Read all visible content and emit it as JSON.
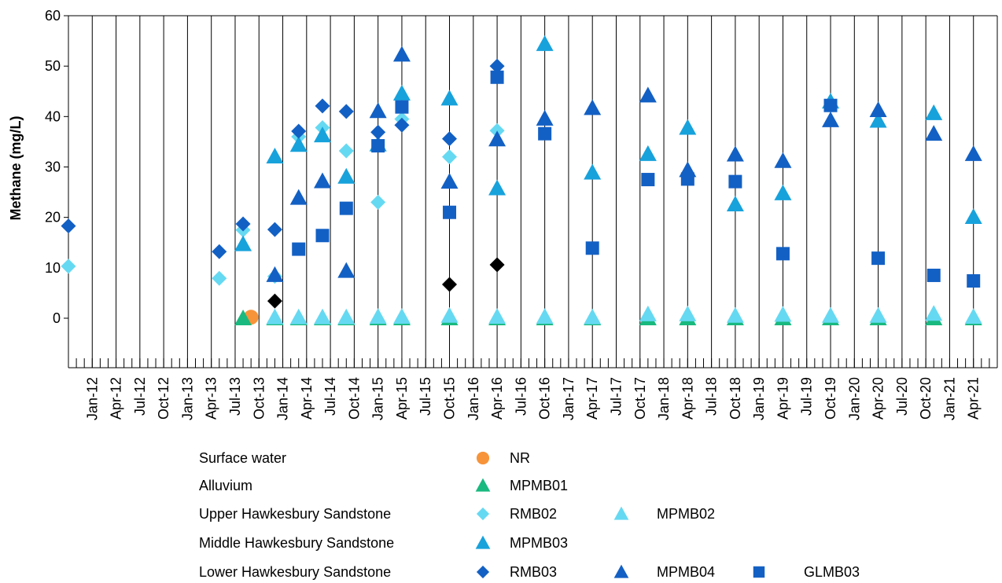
{
  "chart_data": {
    "type": "scatter",
    "ylabel": "Methane (mg/L)",
    "ylim": [
      0,
      60
    ],
    "yticks": [
      0,
      10,
      20,
      30,
      40,
      50,
      60
    ],
    "x_axis_unit": "quarter",
    "xlim": [
      "2011-10",
      "2021-07"
    ],
    "xticks": [
      "Jan-12",
      "Apr-12",
      "Jul-12",
      "Oct-12",
      "Jan-13",
      "Apr-13",
      "Jul-13",
      "Oct-13",
      "Jan-14",
      "Apr-14",
      "Jul-14",
      "Oct-14",
      "Jan-15",
      "Apr-15",
      "Jul-15",
      "Oct-15",
      "Jan-16",
      "Apr-16",
      "Jul-16",
      "Oct-16",
      "Jan-17",
      "Apr-17",
      "Jul-17",
      "Oct-17",
      "Jan-18",
      "Apr-18",
      "Jul-18",
      "Oct-18",
      "Jan-19",
      "Apr-19",
      "Jul-19",
      "Oct-19",
      "Jan-20",
      "Apr-20",
      "Jul-20",
      "Oct-20",
      "Jan-21",
      "Apr-21"
    ],
    "grid": "vertical",
    "legend_position": "bottom",
    "legend_groups": [
      {
        "label": "Surface water",
        "series": [
          "NR"
        ]
      },
      {
        "label": "Alluvium",
        "series": [
          "MPMB01"
        ]
      },
      {
        "label": "Upper Hawkesbury Sandstone",
        "series": [
          "RMB02",
          "MPMB02"
        ]
      },
      {
        "label": "Middle Hawkesbury Sandstone",
        "series": [
          "MPMB03"
        ]
      },
      {
        "label": "Lower Hawkesbury Sandstone",
        "series": [
          "RMB03",
          "MPMB04",
          "GLMB03"
        ]
      }
    ],
    "series": [
      {
        "name": "NR",
        "marker": "circle",
        "color": "#f7943a",
        "points": [
          [
            "2013-09",
            0.2
          ]
        ]
      },
      {
        "name": "MPMB01",
        "marker": "triangle",
        "color": "#19b97f",
        "points": [
          [
            "2013-08",
            0
          ],
          [
            "2013-12",
            0
          ],
          [
            "2014-03",
            0
          ],
          [
            "2014-06",
            0
          ],
          [
            "2014-09",
            0
          ],
          [
            "2015-01",
            0
          ],
          [
            "2015-04",
            0
          ],
          [
            "2015-10",
            0
          ],
          [
            "2016-04",
            0
          ],
          [
            "2016-10",
            0
          ],
          [
            "2017-04",
            0
          ],
          [
            "2017-11",
            0
          ],
          [
            "2018-04",
            0
          ],
          [
            "2018-10",
            0
          ],
          [
            "2019-04",
            0
          ],
          [
            "2019-10",
            0
          ],
          [
            "2020-04",
            0
          ],
          [
            "2020-11",
            0
          ],
          [
            "2021-04",
            0
          ]
        ]
      },
      {
        "name": "RMB02",
        "marker": "diamond",
        "color": "#66d9f2",
        "points": [
          [
            "2011-10",
            10.3
          ],
          [
            "2013-05",
            7.9
          ],
          [
            "2013-08",
            17.5
          ],
          [
            "2013-12",
            8.3
          ],
          [
            "2014-03",
            36.0
          ],
          [
            "2014-06",
            37.8
          ],
          [
            "2014-09",
            33.2
          ],
          [
            "2015-01",
            23.0
          ],
          [
            "2015-04",
            39.5
          ],
          [
            "2015-10",
            32.0
          ],
          [
            "2016-04",
            37.2
          ]
        ]
      },
      {
        "name": "MPMB02",
        "marker": "triangle",
        "color": "#66d9f2",
        "points": [
          [
            "2013-12",
            0.2
          ],
          [
            "2014-03",
            0.2
          ],
          [
            "2014-06",
            0.2
          ],
          [
            "2014-09",
            0.2
          ],
          [
            "2015-01",
            0.3
          ],
          [
            "2015-04",
            0.3
          ],
          [
            "2015-10",
            0.5
          ],
          [
            "2016-04",
            0.3
          ],
          [
            "2016-10",
            0.3
          ],
          [
            "2017-04",
            0.2
          ],
          [
            "2017-11",
            0.8
          ],
          [
            "2018-04",
            0.8
          ],
          [
            "2018-10",
            0.5
          ],
          [
            "2019-04",
            0.7
          ],
          [
            "2019-10",
            0.5
          ],
          [
            "2020-04",
            0.5
          ],
          [
            "2020-11",
            0.9
          ],
          [
            "2021-04",
            0.3
          ]
        ]
      },
      {
        "name": "MPMB03",
        "marker": "triangle",
        "color": "#17a2dc",
        "points": [
          [
            "2013-08",
            14.7
          ],
          [
            "2013-12",
            32.1
          ],
          [
            "2014-03",
            34.4
          ],
          [
            "2014-06",
            36.3
          ],
          [
            "2014-09",
            28.1
          ],
          [
            "2015-01",
            34.5
          ],
          [
            "2015-04",
            44.6
          ],
          [
            "2015-10",
            43.6
          ],
          [
            "2016-04",
            25.8
          ],
          [
            "2016-10",
            54.4
          ],
          [
            "2017-04",
            28.9
          ],
          [
            "2017-11",
            32.6
          ],
          [
            "2018-04",
            37.8
          ],
          [
            "2018-10",
            22.6
          ],
          [
            "2019-04",
            24.8
          ],
          [
            "2019-10",
            43.0
          ],
          [
            "2020-04",
            39.2
          ],
          [
            "2020-11",
            40.7
          ],
          [
            "2021-04",
            20.1
          ]
        ]
      },
      {
        "name": "RMB03",
        "marker": "diamond",
        "color": "#1360c4",
        "points": [
          [
            "2011-10",
            18.3
          ],
          [
            "2013-05",
            13.2
          ],
          [
            "2013-08",
            18.7
          ],
          [
            "2013-12",
            17.6
          ],
          [
            "2014-03",
            37.1
          ],
          [
            "2014-06",
            42.1
          ],
          [
            "2014-09",
            41.0
          ],
          [
            "2015-01",
            36.9
          ],
          [
            "2015-04",
            38.3
          ],
          [
            "2015-10",
            35.6
          ],
          [
            "2016-04",
            50.0
          ]
        ]
      },
      {
        "name": "MPMB04",
        "marker": "triangle",
        "color": "#1360c4",
        "points": [
          [
            "2013-12",
            8.6
          ],
          [
            "2014-03",
            23.9
          ],
          [
            "2014-06",
            27.2
          ],
          [
            "2014-09",
            9.4
          ],
          [
            "2015-01",
            41.1
          ],
          [
            "2015-04",
            52.3
          ],
          [
            "2015-10",
            27.1
          ],
          [
            "2016-04",
            35.5
          ],
          [
            "2016-10",
            39.6
          ],
          [
            "2017-04",
            41.7
          ],
          [
            "2017-11",
            44.2
          ],
          [
            "2018-04",
            29.4
          ],
          [
            "2018-10",
            32.5
          ],
          [
            "2019-04",
            31.2
          ],
          [
            "2019-10",
            39.3
          ],
          [
            "2020-04",
            41.3
          ],
          [
            "2020-11",
            36.6
          ],
          [
            "2021-04",
            32.6
          ]
        ]
      },
      {
        "name": "GLMB03",
        "marker": "square",
        "color": "#1360c4",
        "points": [
          [
            "2014-03",
            13.7
          ],
          [
            "2014-06",
            16.4
          ],
          [
            "2014-09",
            21.8
          ],
          [
            "2015-01",
            34.2
          ],
          [
            "2015-04",
            41.9
          ],
          [
            "2015-10",
            21.0
          ],
          [
            "2016-04",
            47.8
          ],
          [
            "2016-10",
            36.6
          ],
          [
            "2017-04",
            13.9
          ],
          [
            "2017-11",
            27.5
          ],
          [
            "2018-04",
            27.6
          ],
          [
            "2018-10",
            27.1
          ],
          [
            "2019-04",
            12.8
          ],
          [
            "2019-10",
            42.2
          ],
          [
            "2020-04",
            11.9
          ],
          [
            "2020-11",
            8.5
          ],
          [
            "2021-04",
            7.4
          ]
        ]
      },
      {
        "name": "",
        "marker": "diamond",
        "color": "#000000",
        "points": [
          [
            "2013-12",
            3.4
          ],
          [
            "2015-10",
            6.7
          ],
          [
            "2016-04",
            10.6
          ]
        ]
      }
    ]
  }
}
